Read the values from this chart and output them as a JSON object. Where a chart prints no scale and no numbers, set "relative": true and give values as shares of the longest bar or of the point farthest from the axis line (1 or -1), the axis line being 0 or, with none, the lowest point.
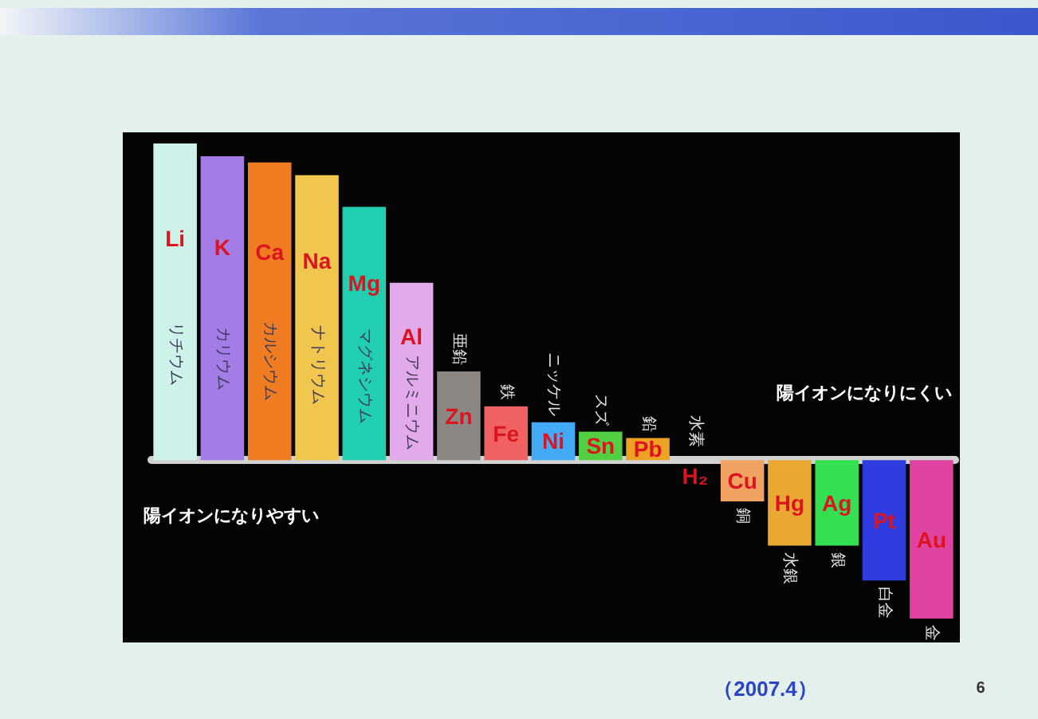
{
  "chart_data": {
    "type": "bar",
    "relative": true,
    "categories": [
      "Li",
      "K",
      "Ca",
      "Na",
      "Mg",
      "Al",
      "Zn",
      "Fe",
      "Ni",
      "Sn",
      "Pb",
      "H₂",
      "Cu",
      "Hg",
      "Ag",
      "Pt",
      "Au"
    ],
    "values": [
      1,
      0.96,
      0.94,
      0.9,
      0.8,
      0.56,
      0.28,
      0.17,
      0.12,
      0.09,
      0.07,
      0,
      -0.13,
      -0.27,
      -0.27,
      -0.38,
      -0.5
    ],
    "colors": [
      "#cdf2ea",
      "#a47ce6",
      "#f07c22",
      "#f0c64e",
      "#22ceb0",
      "#e2aaea",
      "#8c8782",
      "#f06262",
      "#42aaf6",
      "#52d042",
      "#eea224",
      null,
      "#f0a262",
      "#e8a832",
      "#34e052",
      "#2e3ce0",
      "#e042a2"
    ],
    "annotations": [
      "リチウム",
      "カリウム",
      "カルシウム",
      "ナトリウム",
      "マグネシウム",
      "アルミニウム",
      "亜鉛",
      "鉄",
      "ニッケル",
      "スズ",
      "鉛",
      "水素",
      "銅",
      "水銀",
      "銀",
      "白金",
      "金",
      "陽イオンになりやすい",
      "陽イオンになりにくい",
      "（2007.4）",
      "6"
    ]
  }
}
